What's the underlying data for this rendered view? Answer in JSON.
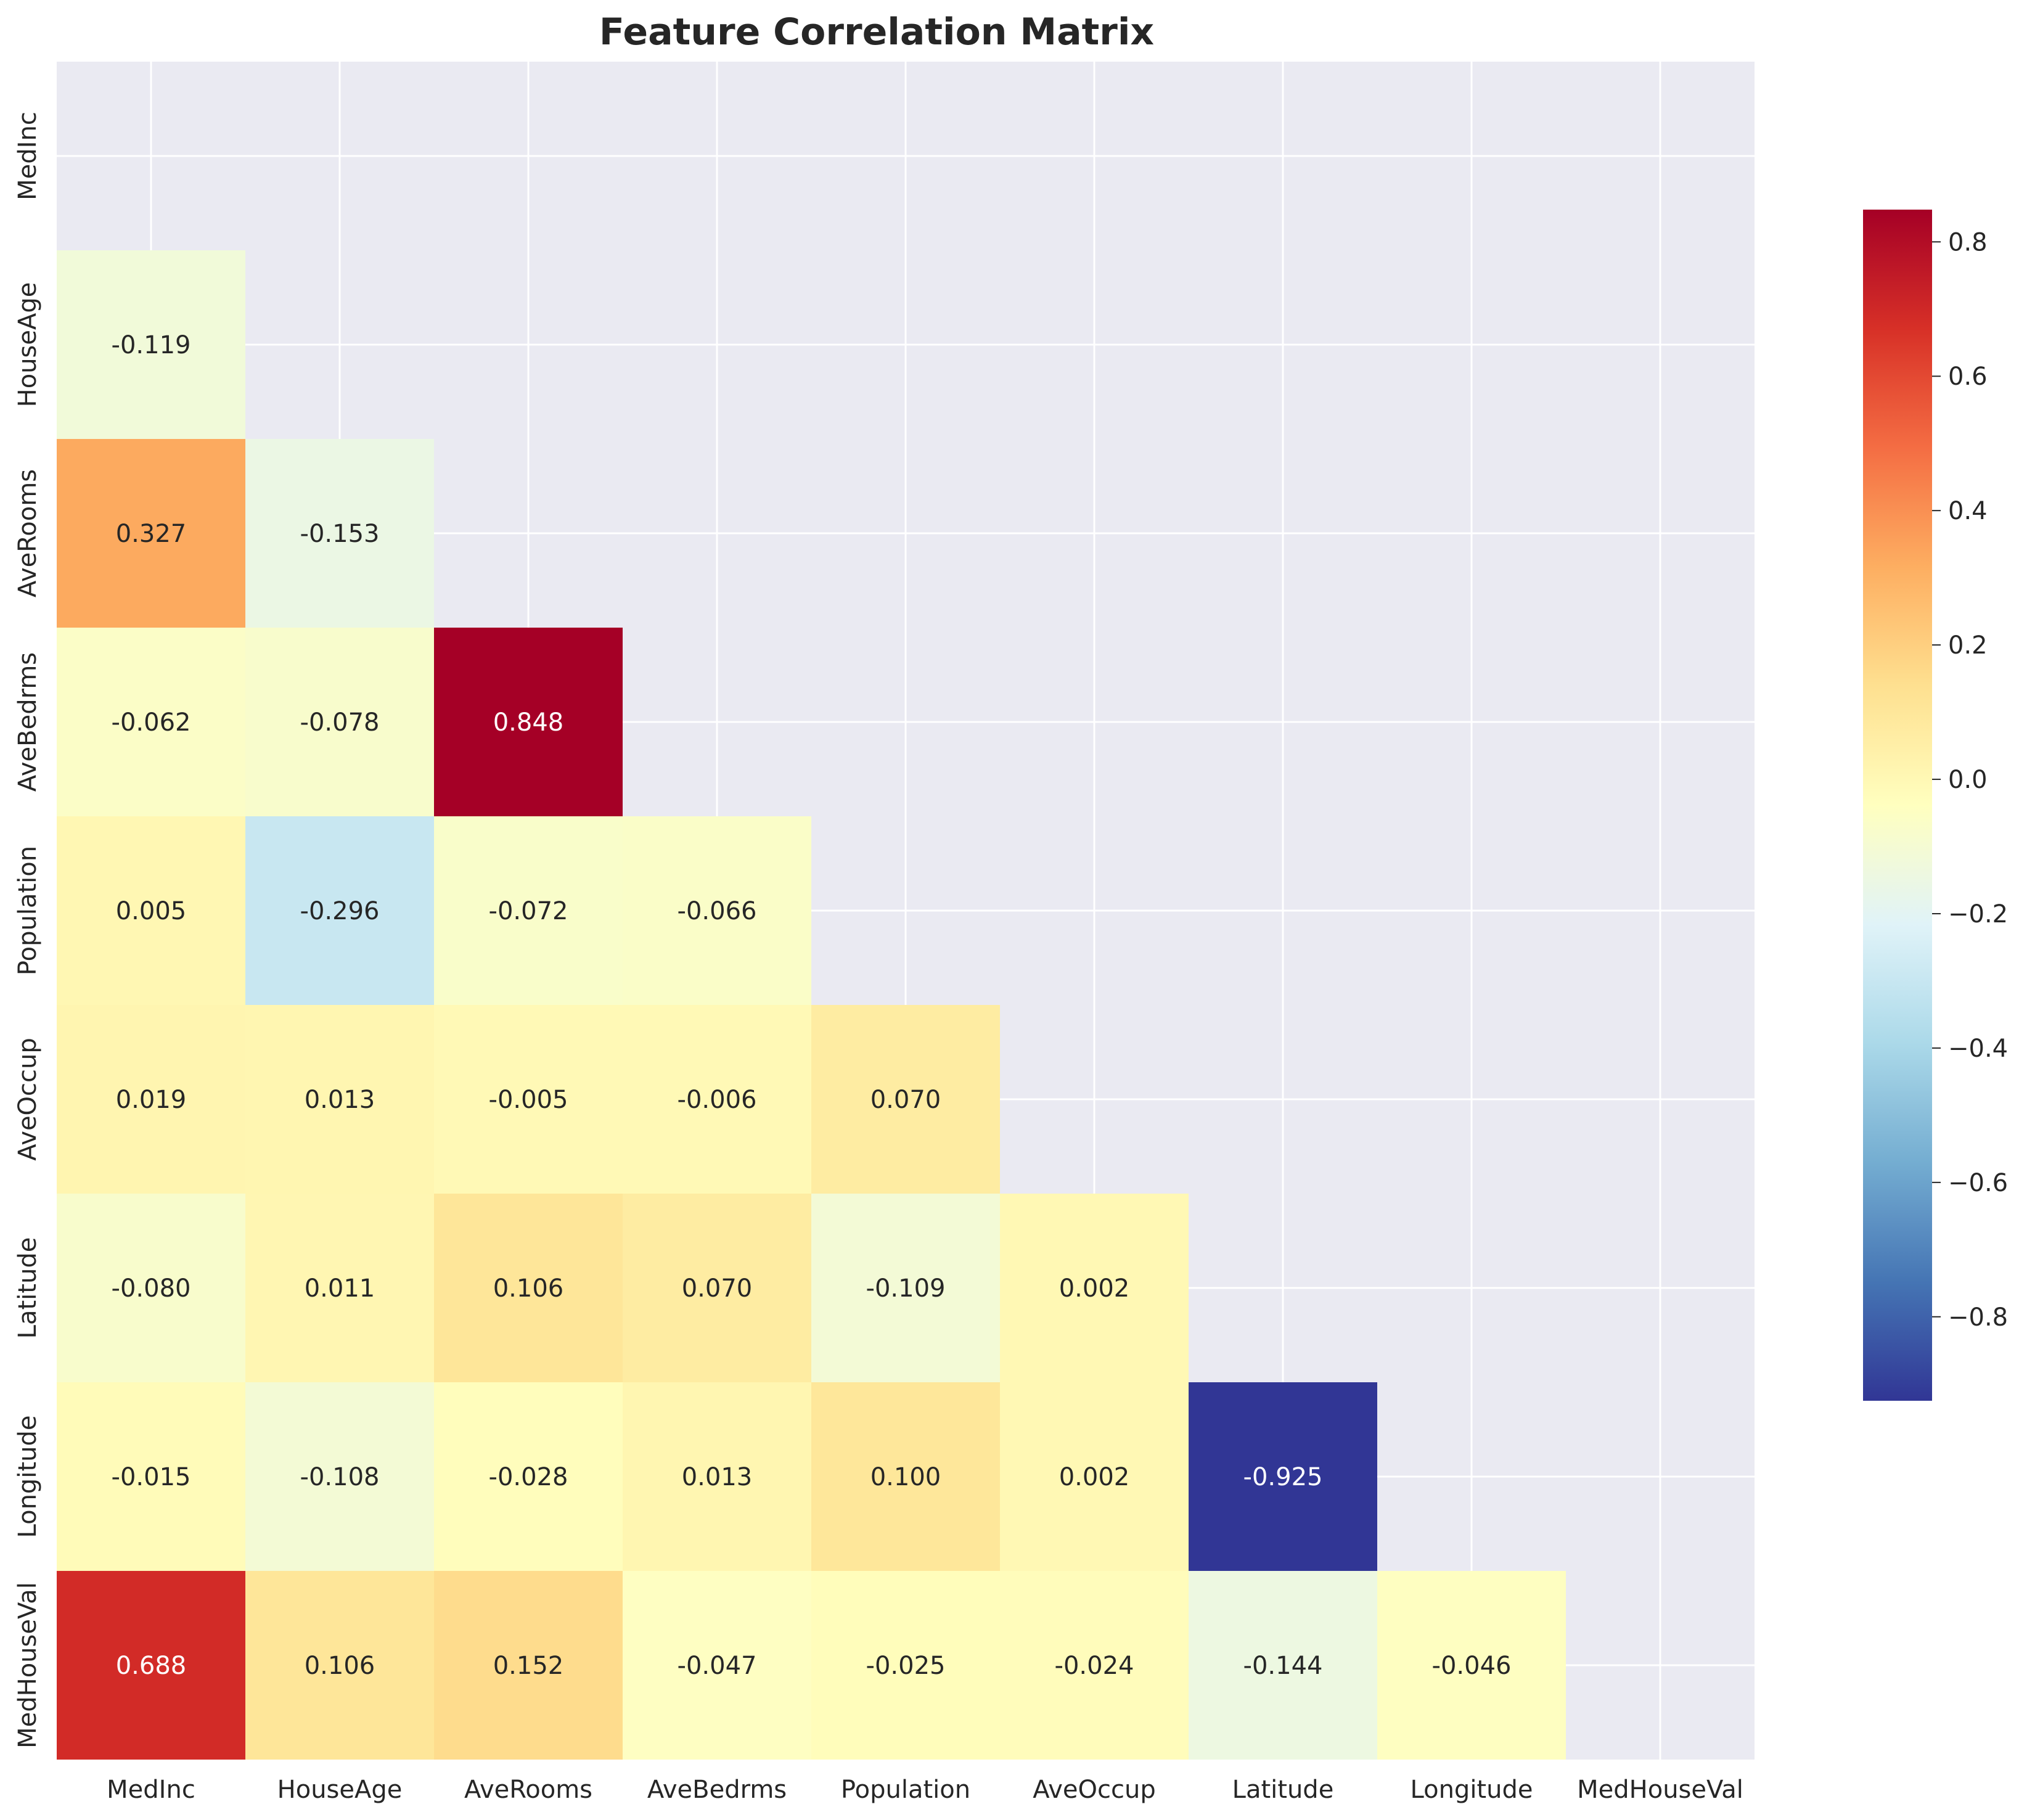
{
  "chart_data": {
    "type": "heatmap",
    "title": "Feature Correlation Matrix",
    "labels": [
      "MedInc",
      "HouseAge",
      "AveRooms",
      "AveBedrms",
      "Population",
      "AveOccup",
      "Latitude",
      "Longitude",
      "MedHouseVal"
    ],
    "mask": "upper-triangle-including-diagonal",
    "colormap": "RdYlBu_r",
    "value_format": "3 decimals",
    "matrix": [
      [
        null,
        null,
        null,
        null,
        null,
        null,
        null,
        null,
        null
      ],
      [
        -0.119,
        null,
        null,
        null,
        null,
        null,
        null,
        null,
        null
      ],
      [
        0.327,
        -0.153,
        null,
        null,
        null,
        null,
        null,
        null,
        null
      ],
      [
        -0.062,
        -0.078,
        0.848,
        null,
        null,
        null,
        null,
        null,
        null
      ],
      [
        0.005,
        -0.296,
        -0.072,
        -0.066,
        null,
        null,
        null,
        null,
        null
      ],
      [
        0.019,
        0.013,
        -0.005,
        -0.006,
        0.07,
        null,
        null,
        null,
        null
      ],
      [
        -0.08,
        0.011,
        0.106,
        0.07,
        -0.109,
        0.002,
        null,
        null,
        null
      ],
      [
        -0.015,
        -0.108,
        -0.028,
        0.013,
        0.1,
        0.002,
        -0.925,
        null,
        null
      ],
      [
        0.688,
        0.106,
        0.152,
        -0.047,
        -0.025,
        -0.024,
        -0.144,
        -0.046,
        null
      ]
    ],
    "colorbar": {
      "min": -0.925,
      "max": 0.848,
      "ticks": [
        0.8,
        0.6,
        0.4,
        0.2,
        0.0,
        -0.2,
        -0.4,
        -0.6,
        -0.8
      ],
      "tick_labels": [
        "0.8",
        "0.6",
        "0.4",
        "0.2",
        "0.0",
        "−0.2",
        "−0.4",
        "−0.6",
        "−0.8"
      ]
    },
    "grid": true,
    "background_color": "#eaeaf2"
  }
}
